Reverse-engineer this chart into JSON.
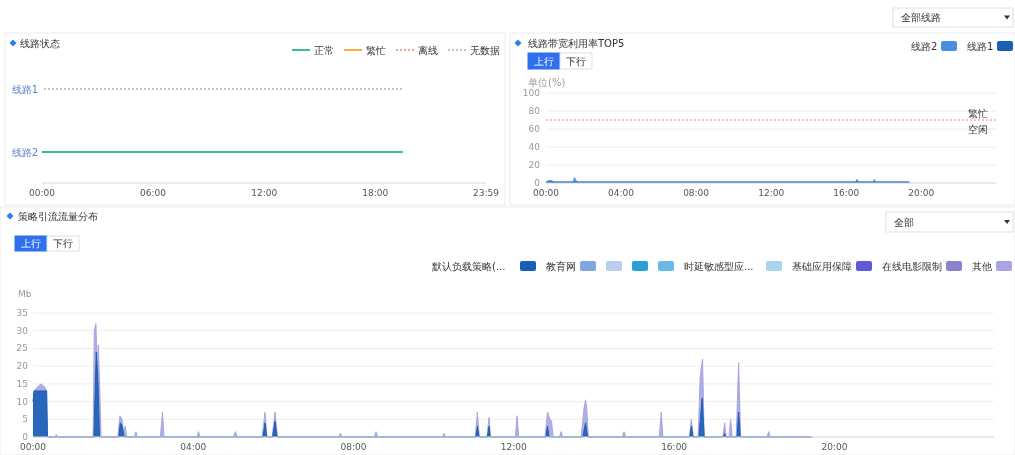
{
  "chart_data": [
    {
      "type": "other",
      "annotations": [
        "全部线路"
      ]
    },
    {
      "type": "bar",
      "orientation": "horizontal",
      "title": "线路状态",
      "categories": [
        "线路1",
        "线路2"
      ],
      "xlim": [
        0,
        23.983
      ],
      "xticks": [
        {
          "value": 0,
          "label": "00:00"
        },
        {
          "value": 6,
          "label": "06:00"
        },
        {
          "value": 12,
          "label": "12:00"
        },
        {
          "value": 18,
          "label": "18:00"
        },
        {
          "value": 23.983,
          "label": "23:59"
        }
      ],
      "legend": "top right",
      "series": [
        {
          "name": "正常",
          "color": "#3dbd8a",
          "values": [
            null,
            19.5
          ]
        },
        {
          "name": "繁忙",
          "color": "#f5b041",
          "values": [
            null,
            null
          ]
        },
        {
          "name": "离线",
          "color": "#f4a0a0",
          "line_style": "dotted",
          "values": [
            null,
            null
          ]
        },
        {
          "name": "无数据",
          "color": "#c0c4cc",
          "line_style": "dotted",
          "values": [
            19.5,
            null
          ]
        }
      ]
    },
    {
      "type": "area",
      "title": "线路带宽利用率TOP5",
      "ylabel": "单位(%)",
      "annotations": [
        "上行",
        "下行",
        {
          "text": "空闲",
          "y": 70
        }
      ],
      "xlim": [
        0,
        23.983
      ],
      "xticks": [
        {
          "value": 0,
          "label": "00:00"
        },
        {
          "value": 4,
          "label": "04:00"
        },
        {
          "value": 8,
          "label": "08:00"
        },
        {
          "value": 12,
          "label": "12:00"
        },
        {
          "value": 16,
          "label": "16:00"
        },
        {
          "value": 20,
          "label": "20:00"
        }
      ],
      "ylim": [
        0,
        100
      ],
      "yticks": [
        0,
        20,
        40,
        60,
        80,
        100
      ],
      "grid": "y",
      "legend": "top right",
      "ref_lines": [
        {
          "axis": "y",
          "value": 70,
          "label": "繁忙",
          "color": "#f08080",
          "line_style": "dotted"
        }
      ],
      "series": [
        {
          "name": "线路2",
          "color": "#4a8fdf",
          "x": [
            0,
            0.1,
            0.2,
            0.35,
            0.45,
            1.45,
            1.52,
            1.58,
            1.7,
            16.5,
            16.57,
            16.65,
            17.45,
            17.5,
            17.55,
            19.36
          ],
          "values": [
            1,
            2,
            3,
            2,
            1,
            1,
            6,
            3,
            1,
            1,
            4,
            1,
            1,
            4,
            1,
            1
          ]
        },
        {
          "name": "线路1",
          "color": "#1a5fb4",
          "x": [
            0,
            19.36
          ],
          "values": [
            1,
            1
          ]
        }
      ]
    },
    {
      "type": "area",
      "title": "策略引流流量分布",
      "ylabel": "Mb",
      "annotations": [
        "全部",
        "上行",
        "下行"
      ],
      "xlim": [
        0,
        23.983
      ],
      "xticks": [
        {
          "value": 0,
          "label": "00:00"
        },
        {
          "value": 4,
          "label": "04:00"
        },
        {
          "value": 8,
          "label": "08:00"
        },
        {
          "value": 12,
          "label": "12:00"
        },
        {
          "value": 16,
          "label": "16:00"
        },
        {
          "value": 20,
          "label": "20:00"
        }
      ],
      "ylim": [
        0,
        35
      ],
      "yticks": [
        0,
        5,
        10,
        15,
        20,
        25,
        30,
        35
      ],
      "grid": "y",
      "legend": "top right",
      "series": [
        {
          "name": "默认负载策略(...",
          "color": "#1a5fb4",
          "x": [
            0,
            0.03,
            0.15,
            0.3,
            0.34,
            0.36,
            1.52,
            1.58,
            1.62,
            1.66,
            2.14,
            2.18,
            2.23,
            2.27,
            5.74,
            5.79,
            5.83,
            5.98,
            6.04,
            6.09,
            11.05,
            11.09,
            11.13,
            11.34,
            11.38,
            11.41,
            12.8,
            12.84,
            12.88,
            13.72,
            13.79,
            13.84,
            16.39,
            16.43,
            16.47,
            16.62,
            16.7,
            16.75,
            17.23,
            17.26,
            17.29,
            17.57,
            17.61,
            17.65,
            19.43
          ],
          "values": [
            10,
            13,
            13,
            13,
            13,
            0,
            0,
            24,
            16,
            0,
            0,
            4,
            3,
            0,
            0,
            4,
            0,
            0,
            4.5,
            0,
            0,
            3,
            0,
            0,
            3,
            0,
            0,
            3,
            0,
            0,
            4,
            0,
            0,
            3,
            0,
            0,
            11,
            0,
            0,
            1,
            0,
            0,
            7,
            0,
            0
          ]
        },
        {
          "name": "教育网",
          "color": "#7fa6e0"
        },
        {
          "color": "#b8cdef"
        },
        {
          "color": "#2a9fd8"
        },
        {
          "color": "#6cb8e8"
        },
        {
          "name": "时延敏感型应...",
          "color": "#a8d4f0"
        },
        {
          "name": "基础应用保障",
          "color": "#5b5bd6"
        },
        {
          "name": "在线电影限制",
          "color": "#8a84d0"
        },
        {
          "name": "其他",
          "color": "#a9a4e2",
          "x": [
            0,
            0.02,
            0.1,
            0.2,
            0.3,
            0.34,
            0.36,
            0.55,
            0.58,
            0.61,
            1.5,
            1.53,
            1.57,
            1.6,
            1.63,
            1.67,
            1.7,
            2.12,
            2.17,
            2.22,
            2.26,
            2.3,
            2.34,
            2.53,
            2.57,
            2.6,
            3.18,
            3.23,
            3.27,
            4.09,
            4.13,
            4.17,
            5.0,
            5.05,
            5.1,
            5.72,
            5.79,
            5.84,
            5.97,
            6.04,
            6.1,
            7.63,
            7.67,
            7.71,
            8.52,
            8.56,
            8.6,
            10.22,
            10.26,
            10.3,
            11.04,
            11.09,
            11.14,
            11.33,
            11.38,
            11.42,
            12.04,
            12.08,
            12.12,
            12.78,
            12.84,
            12.9,
            12.94,
            12.98,
            13.14,
            13.18,
            13.22,
            13.68,
            13.75,
            13.79,
            13.82,
            13.86,
            14.71,
            14.75,
            14.79,
            15.63,
            15.68,
            15.72,
            16.38,
            16.43,
            16.48,
            16.6,
            16.65,
            16.71,
            16.75,
            17.22,
            17.26,
            17.3,
            17.37,
            17.41,
            17.45,
            17.55,
            17.61,
            17.66,
            18.32,
            18.36,
            18.4,
            19.43
          ],
          "values": [
            12,
            13,
            14,
            15,
            14,
            13,
            0,
            0,
            0.7,
            0,
            0,
            30,
            32,
            20,
            26,
            12,
            0,
            0,
            6,
            5,
            1,
            3,
            0,
            0,
            1.5,
            0,
            0,
            7,
            0,
            0,
            1.5,
            0,
            0,
            1.5,
            0,
            0,
            7,
            0,
            0,
            7,
            0,
            0,
            1,
            0,
            0,
            1.5,
            0,
            0,
            1,
            0,
            0,
            7,
            0,
            0,
            5.5,
            0,
            0,
            6,
            0,
            0,
            7,
            5,
            4.5,
            0,
            0,
            1.5,
            0,
            0,
            8,
            10.5,
            8,
            0,
            0,
            1.5,
            0,
            0,
            7,
            0,
            0,
            5,
            0,
            0,
            17,
            22,
            0,
            0,
            4,
            0,
            0,
            5,
            0,
            0,
            21,
            0,
            0,
            1.5,
            0,
            0
          ]
        }
      ]
    }
  ]
}
